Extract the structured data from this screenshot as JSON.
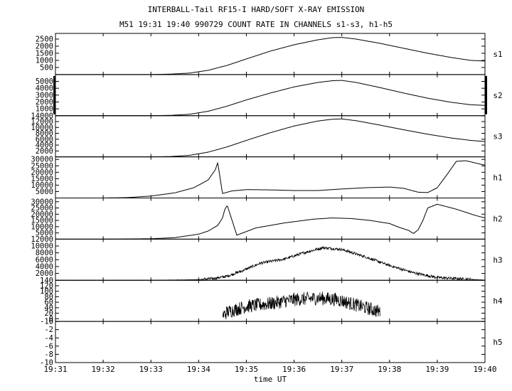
{
  "header": {
    "title": "INTERBALL-Tail RF15-I HARD/SOFT X-RAY EMISSION",
    "subtitle": "M51  19:31 19:40 990729  COUNT RATE IN CHANNELS s1-s3, h1-h5"
  },
  "chart_data": {
    "type": "line",
    "title": "INTERBALL-Tail RF15-I HARD/SOFT X-RAY EMISSION",
    "subtitle": "M51  19:31 19:40 990729  COUNT RATE IN CHANNELS s1-s3, h1-h5",
    "xlabel": "time UT",
    "x_unit": "minutes after 19:31",
    "xlim": [
      0,
      9
    ],
    "x_ticks": [
      "19:31",
      "19:32",
      "19:33",
      "19:34",
      "19:35",
      "19:36",
      "19:37",
      "19:38",
      "19:39",
      "19:40"
    ],
    "panels": [
      {
        "name": "s1",
        "ylim": [
          0,
          2900
        ],
        "ticks": [
          500,
          1000,
          1500,
          2000,
          2500
        ],
        "x": [
          0,
          2,
          2.4,
          2.8,
          3.2,
          3.6,
          4.0,
          4.5,
          5.0,
          5.5,
          5.8,
          6.0,
          6.3,
          6.8,
          7.3,
          7.8,
          8.3,
          8.7,
          9.0
        ],
        "y": [
          0,
          0,
          30,
          100,
          300,
          650,
          1100,
          1650,
          2100,
          2450,
          2600,
          2620,
          2500,
          2200,
          1850,
          1500,
          1200,
          1000,
          950
        ],
        "noise": 0
      },
      {
        "name": "s2",
        "ylim": [
          0,
          6000
        ],
        "ticks": [
          1000,
          2000,
          3000,
          4000,
          5000
        ],
        "x": [
          0,
          2,
          2.4,
          2.8,
          3.2,
          3.6,
          4.0,
          4.5,
          5.0,
          5.5,
          5.8,
          6.0,
          6.3,
          6.8,
          7.3,
          7.8,
          8.3,
          8.7,
          9.0
        ],
        "y": [
          0,
          0,
          50,
          200,
          650,
          1400,
          2300,
          3300,
          4200,
          4850,
          5100,
          5150,
          4850,
          4100,
          3300,
          2550,
          1950,
          1600,
          1500
        ],
        "noise": 0
      },
      {
        "name": "s3",
        "ylim": [
          0,
          14000
        ],
        "ticks": [
          2000,
          4000,
          6000,
          8000,
          10000,
          12000,
          14000
        ],
        "x": [
          0,
          2,
          2.4,
          2.8,
          3.2,
          3.6,
          4.0,
          4.5,
          5.0,
          5.5,
          5.8,
          6.0,
          6.3,
          6.8,
          7.3,
          7.8,
          8.3,
          8.7,
          9.0
        ],
        "y": [
          0,
          0,
          100,
          500,
          1600,
          3400,
          5600,
          8200,
          10500,
          12200,
          12800,
          12900,
          12300,
          10800,
          9200,
          7700,
          6400,
          5600,
          5200
        ],
        "noise": 0
      },
      {
        "name": "h1",
        "ylim": [
          0,
          32000
        ],
        "ticks": [
          5000,
          10000,
          15000,
          20000,
          25000,
          30000
        ],
        "x": [
          0,
          1.0,
          1.5,
          2.0,
          2.5,
          2.9,
          3.2,
          3.35,
          3.4,
          3.5,
          3.7,
          4.0,
          4.5,
          5.0,
          5.5,
          6.0,
          6.5,
          7.0,
          7.3,
          7.6,
          7.8,
          8.0,
          8.2,
          8.4,
          8.6,
          9.0
        ],
        "y": [
          0,
          0,
          300,
          1500,
          4000,
          8000,
          14000,
          22000,
          27500,
          3500,
          5500,
          6500,
          6300,
          5800,
          5800,
          7000,
          8000,
          8500,
          7500,
          4500,
          4200,
          8000,
          18000,
          28500,
          29000,
          25500
        ],
        "noise": 0
      },
      {
        "name": "h2",
        "ylim": [
          0,
          33000
        ],
        "ticks": [
          5000,
          10000,
          15000,
          20000,
          25000,
          30000
        ],
        "x": [
          0,
          1.0,
          2.0,
          2.5,
          3.0,
          3.2,
          3.4,
          3.5,
          3.55,
          3.6,
          3.8,
          4.2,
          4.8,
          5.4,
          5.8,
          6.2,
          6.6,
          7.0,
          7.2,
          7.4,
          7.5,
          7.6,
          7.7,
          7.8,
          8.0,
          8.4,
          8.8,
          9.0
        ],
        "y": [
          0,
          0,
          300,
          1200,
          4000,
          6500,
          11000,
          17000,
          24000,
          27000,
          3200,
          9000,
          13000,
          16000,
          17000,
          16500,
          15000,
          12500,
          9500,
          7000,
          4500,
          7500,
          15000,
          25000,
          28000,
          24000,
          19000,
          17000
        ],
        "noise": 0
      },
      {
        "name": "h3",
        "ylim": [
          0,
          12000
        ],
        "ticks": [
          2000,
          4000,
          6000,
          8000,
          10000,
          12000
        ],
        "x": [
          0,
          2.0,
          2.5,
          3.0,
          3.3,
          3.6,
          3.9,
          4.3,
          4.8,
          5.2,
          5.6,
          6.0,
          6.5,
          7.0,
          7.5,
          8.0,
          9.0
        ],
        "y": [
          0,
          0,
          80,
          200,
          500,
          1200,
          2700,
          5000,
          6200,
          8000,
          9500,
          9000,
          6800,
          4300,
          2200,
          800,
          50
        ],
        "noise": 400
      },
      {
        "name": "h4",
        "ylim": [
          -10,
          140
        ],
        "ticks": [
          -10,
          0,
          20,
          40,
          60,
          80,
          100,
          120,
          140
        ],
        "x": [
          3.5,
          3.6,
          4.0,
          4.5,
          5.0,
          5.5,
          5.9,
          6.2,
          6.5,
          6.8
        ],
        "y": [
          10,
          25,
          45,
          55,
          70,
          75,
          70,
          55,
          40,
          25
        ],
        "noise": 25
      },
      {
        "name": "h5",
        "ylim": [
          -10,
          0
        ],
        "ticks": [
          -10,
          -8,
          -6,
          -4,
          -2,
          0
        ],
        "x": [],
        "y": [],
        "noise": 0
      }
    ]
  }
}
